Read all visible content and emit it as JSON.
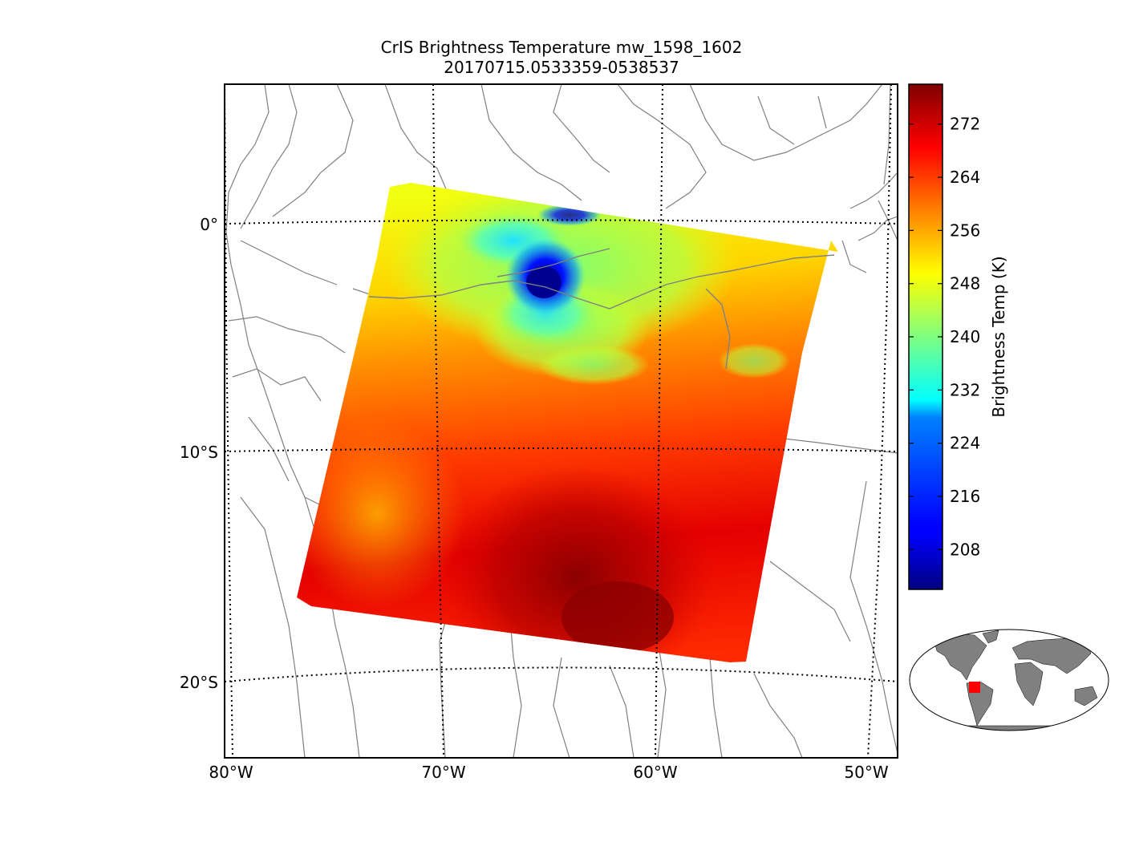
{
  "title": {
    "line1": "CrIS Brightness Temperature mw_1598_1602",
    "line2": "20170715.0533359-0538537"
  },
  "map": {
    "lat_labels": [
      "0°",
      "10°S",
      "20°S"
    ],
    "lon_labels": [
      "80°W",
      "70°W",
      "60°W",
      "50°W"
    ],
    "lat_values": [
      0,
      -10,
      -20
    ],
    "lon_values": [
      -80,
      -70,
      -60,
      -50
    ],
    "boundary_color": "#808080",
    "gridline_style": "dotted"
  },
  "colorbar": {
    "label": "Brightness Temp (K)",
    "ticks": [
      "272",
      "264",
      "256",
      "248",
      "240",
      "232",
      "224",
      "216",
      "208"
    ],
    "tick_values": [
      272,
      264,
      256,
      248,
      240,
      232,
      224,
      216,
      208
    ],
    "range": [
      202,
      278
    ],
    "colormap": "jet"
  },
  "swath": {
    "dominant_temp_range": [
      262,
      276
    ],
    "cold_spot_min": 204
  },
  "inset": {
    "description_icon": "world-locator-map",
    "land_color": "#808080",
    "highlight_color": "#ff0000"
  }
}
